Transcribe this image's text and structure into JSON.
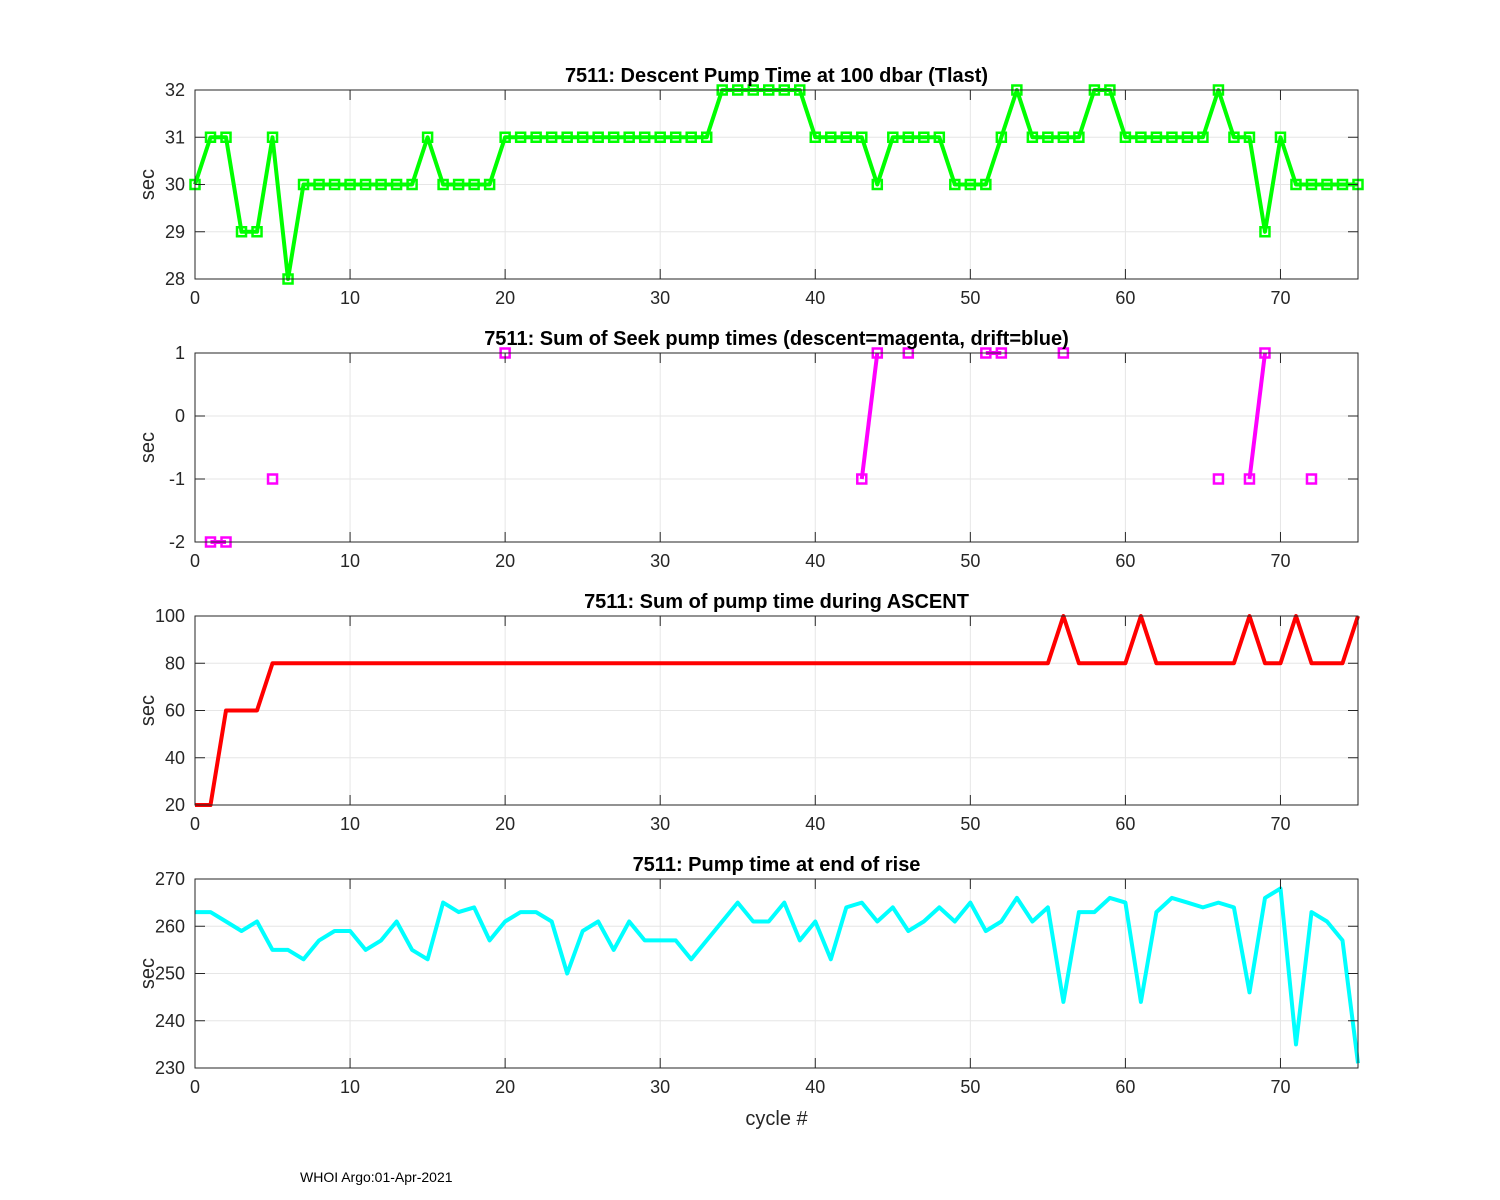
{
  "footer": "WHOI Argo:01-Apr-2021",
  "chart_data": [
    {
      "type": "line",
      "title": "7511: Descent Pump Time at 100 dbar (Tlast)",
      "xlabel": "",
      "ylabel": "sec",
      "xlim": [
        0,
        75
      ],
      "ylim": [
        28,
        32
      ],
      "xticks": [
        0,
        10,
        20,
        30,
        40,
        50,
        60,
        70
      ],
      "yticks": [
        28,
        29,
        30,
        31,
        32
      ],
      "grid": true,
      "color": "#00ff00",
      "marker": "square",
      "series": [
        {
          "name": "Tlast",
          "x": [
            0,
            1,
            2,
            3,
            4,
            5,
            6,
            7,
            8,
            9,
            10,
            11,
            12,
            13,
            14,
            15,
            16,
            17,
            18,
            19,
            20,
            21,
            22,
            23,
            24,
            25,
            26,
            27,
            28,
            29,
            30,
            31,
            32,
            33,
            34,
            35,
            36,
            37,
            38,
            39,
            40,
            41,
            42,
            43,
            44,
            45,
            46,
            47,
            48,
            49,
            50,
            51,
            52,
            53,
            54,
            55,
            56,
            57,
            58,
            59,
            60,
            61,
            62,
            63,
            64,
            65,
            66,
            67,
            68,
            69,
            70,
            71,
            72,
            73,
            74,
            75
          ],
          "y": [
            30,
            31,
            31,
            29,
            29,
            31,
            28,
            30,
            30,
            30,
            30,
            30,
            30,
            30,
            30,
            31,
            30,
            30,
            30,
            30,
            31,
            31,
            31,
            31,
            31,
            31,
            31,
            31,
            31,
            31,
            31,
            31,
            31,
            31,
            32,
            32,
            32,
            32,
            32,
            32,
            31,
            31,
            31,
            31,
            30,
            31,
            31,
            31,
            31,
            30,
            30,
            30,
            31,
            32,
            31,
            31,
            31,
            31,
            32,
            32,
            31,
            31,
            31,
            31,
            31,
            31,
            32,
            31,
            31,
            29,
            31,
            30,
            30,
            30,
            30,
            30
          ]
        }
      ]
    },
    {
      "type": "line",
      "title": "7511: Sum of Seek pump times (descent=magenta, drift=blue)",
      "xlabel": "",
      "ylabel": "sec",
      "xlim": [
        0,
        75
      ],
      "ylim": [
        -2,
        1
      ],
      "xticks": [
        0,
        10,
        20,
        30,
        40,
        50,
        60,
        70
      ],
      "yticks": [
        -2,
        -1,
        0,
        1
      ],
      "grid": true,
      "color": "#ff00ff",
      "marker": "square",
      "series": [
        {
          "name": "descent",
          "x": [
            0,
            1,
            2,
            3,
            4,
            5,
            6,
            7,
            8,
            9,
            10,
            11,
            12,
            13,
            14,
            15,
            16,
            17,
            18,
            19,
            20,
            21,
            22,
            23,
            24,
            25,
            26,
            27,
            28,
            29,
            30,
            31,
            32,
            33,
            34,
            35,
            36,
            37,
            38,
            39,
            40,
            41,
            42,
            43,
            44,
            45,
            46,
            47,
            48,
            49,
            50,
            51,
            52,
            53,
            54,
            55,
            56,
            57,
            58,
            59,
            60,
            61,
            62,
            63,
            64,
            65,
            66,
            67,
            68,
            69,
            70,
            71,
            72,
            73,
            74,
            75
          ],
          "y": [
            null,
            -2,
            -2,
            null,
            null,
            -1,
            null,
            null,
            null,
            null,
            null,
            null,
            null,
            null,
            null,
            null,
            null,
            null,
            null,
            null,
            1,
            null,
            null,
            null,
            null,
            null,
            null,
            null,
            null,
            null,
            null,
            null,
            null,
            null,
            null,
            null,
            null,
            null,
            null,
            null,
            null,
            null,
            null,
            -1,
            1,
            null,
            1,
            null,
            null,
            null,
            null,
            1,
            1,
            null,
            null,
            null,
            1,
            null,
            null,
            null,
            null,
            null,
            null,
            null,
            null,
            null,
            -1,
            null,
            -1,
            1,
            null,
            null,
            -1,
            null,
            null,
            null
          ]
        }
      ]
    },
    {
      "type": "line",
      "title": "7511: Sum of pump time during ASCENT",
      "xlabel": "",
      "ylabel": "sec",
      "xlim": [
        0,
        75
      ],
      "ylim": [
        20,
        100
      ],
      "xticks": [
        0,
        10,
        20,
        30,
        40,
        50,
        60,
        70
      ],
      "yticks": [
        20,
        40,
        60,
        80,
        100
      ],
      "grid": true,
      "color": "#ff0000",
      "marker": "none",
      "series": [
        {
          "name": "ascent",
          "x": [
            0,
            1,
            2,
            3,
            4,
            5,
            6,
            7,
            8,
            9,
            10,
            11,
            12,
            13,
            14,
            15,
            16,
            17,
            18,
            19,
            20,
            21,
            22,
            23,
            24,
            25,
            26,
            27,
            28,
            29,
            30,
            31,
            32,
            33,
            34,
            35,
            36,
            37,
            38,
            39,
            40,
            41,
            42,
            43,
            44,
            45,
            46,
            47,
            48,
            49,
            50,
            51,
            52,
            53,
            54,
            55,
            56,
            57,
            58,
            59,
            60,
            61,
            62,
            63,
            64,
            65,
            66,
            67,
            68,
            69,
            70,
            71,
            72,
            73,
            74,
            75
          ],
          "y": [
            20,
            20,
            60,
            60,
            60,
            80,
            80,
            80,
            80,
            80,
            80,
            80,
            80,
            80,
            80,
            80,
            80,
            80,
            80,
            80,
            80,
            80,
            80,
            80,
            80,
            80,
            80,
            80,
            80,
            80,
            80,
            80,
            80,
            80,
            80,
            80,
            80,
            80,
            80,
            80,
            80,
            80,
            80,
            80,
            80,
            80,
            80,
            80,
            80,
            80,
            80,
            80,
            80,
            80,
            80,
            80,
            100,
            80,
            80,
            80,
            80,
            100,
            80,
            80,
            80,
            80,
            80,
            80,
            100,
            80,
            80,
            100,
            80,
            80,
            80,
            100
          ]
        }
      ]
    },
    {
      "type": "line",
      "title": "7511: Pump time at end of rise",
      "xlabel": "cycle #",
      "ylabel": "sec",
      "xlim": [
        0,
        75
      ],
      "ylim": [
        230,
        270
      ],
      "xticks": [
        0,
        10,
        20,
        30,
        40,
        50,
        60,
        70
      ],
      "yticks": [
        230,
        240,
        250,
        260,
        270
      ],
      "grid": true,
      "color": "#00ffff",
      "marker": "none",
      "series": [
        {
          "name": "end of rise",
          "x": [
            0,
            1,
            2,
            3,
            4,
            5,
            6,
            7,
            8,
            9,
            10,
            11,
            12,
            13,
            14,
            15,
            16,
            17,
            18,
            19,
            20,
            21,
            22,
            23,
            24,
            25,
            26,
            27,
            28,
            29,
            30,
            31,
            32,
            33,
            34,
            35,
            36,
            37,
            38,
            39,
            40,
            41,
            42,
            43,
            44,
            45,
            46,
            47,
            48,
            49,
            50,
            51,
            52,
            53,
            54,
            55,
            56,
            57,
            58,
            59,
            60,
            61,
            62,
            63,
            64,
            65,
            66,
            67,
            68,
            69,
            70,
            71,
            72,
            73,
            74,
            75
          ],
          "y": [
            263,
            263,
            261,
            259,
            261,
            255,
            255,
            253,
            257,
            259,
            259,
            255,
            257,
            261,
            255,
            253,
            265,
            263,
            264,
            257,
            261,
            263,
            263,
            261,
            250,
            259,
            261,
            255,
            261,
            257,
            257,
            257,
            253,
            257,
            261,
            265,
            261,
            261,
            265,
            257,
            261,
            253,
            264,
            265,
            261,
            264,
            259,
            261,
            264,
            261,
            265,
            259,
            261,
            266,
            261,
            264,
            244,
            263,
            263,
            266,
            265,
            244,
            263,
            266,
            265,
            264,
            265,
            264,
            246,
            266,
            268,
            235,
            263,
            261,
            257,
            231
          ]
        }
      ]
    }
  ]
}
